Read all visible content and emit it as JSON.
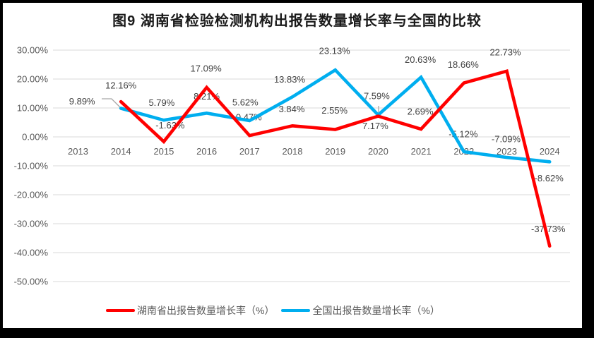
{
  "frame": {
    "border_color": "#000000",
    "background": "#ffffff"
  },
  "chart_data": {
    "type": "line",
    "title": "图9 湖南省检验检测机构出报告数量增长率与全国的比较",
    "categories": [
      "2013",
      "2014",
      "2015",
      "2016",
      "2017",
      "2018",
      "2019",
      "2020",
      "2021",
      "2022",
      "2023",
      "2024"
    ],
    "y_axis": {
      "tick_labels": [
        "30.00%",
        "20.00%",
        "10.00%",
        "0.00%",
        "-10.00%",
        "-20.00%",
        "-30.00%",
        "-40.00%",
        "-50.00%"
      ],
      "tick_values": [
        30,
        20,
        10,
        0,
        -10,
        -20,
        -30,
        -40,
        -50
      ],
      "ylim": [
        -50,
        30
      ],
      "grid": true
    },
    "legend_position": "bottom",
    "series": [
      {
        "name": "湖南省出报告数量增长率（%）",
        "color": "#FF0000",
        "values": [
          null,
          12.16,
          -1.63,
          17.09,
          0.47,
          3.84,
          2.55,
          7.17,
          2.69,
          18.66,
          22.73,
          -37.73
        ],
        "labels": [
          null,
          "12.16%",
          "-1.63%",
          "17.09%",
          "0.47%",
          "3.84%",
          "2.55%",
          "7.17%",
          "2.69%",
          "18.66%",
          "22.73%",
          "-37.73%"
        ]
      },
      {
        "name": "全国出报告数量增长率（%）",
        "color": "#00AEEF",
        "values": [
          null,
          9.89,
          5.79,
          8.21,
          5.62,
          13.83,
          23.13,
          7.59,
          20.63,
          -5.12,
          -7.09,
          -8.62
        ],
        "labels": [
          null,
          "9.89%",
          "5.79%",
          "8.21%",
          "5.62%",
          "13.83%",
          "23.13%",
          "7.59%",
          "20.63%",
          "-5.12%",
          "-7.09%",
          "-8.62%"
        ]
      }
    ],
    "colors": {
      "grid": "#D9D9D9",
      "axis_text": "#595959",
      "label_text": "#404040",
      "leader": "#A6A6A6",
      "title_text": "#1A1A1A"
    }
  }
}
